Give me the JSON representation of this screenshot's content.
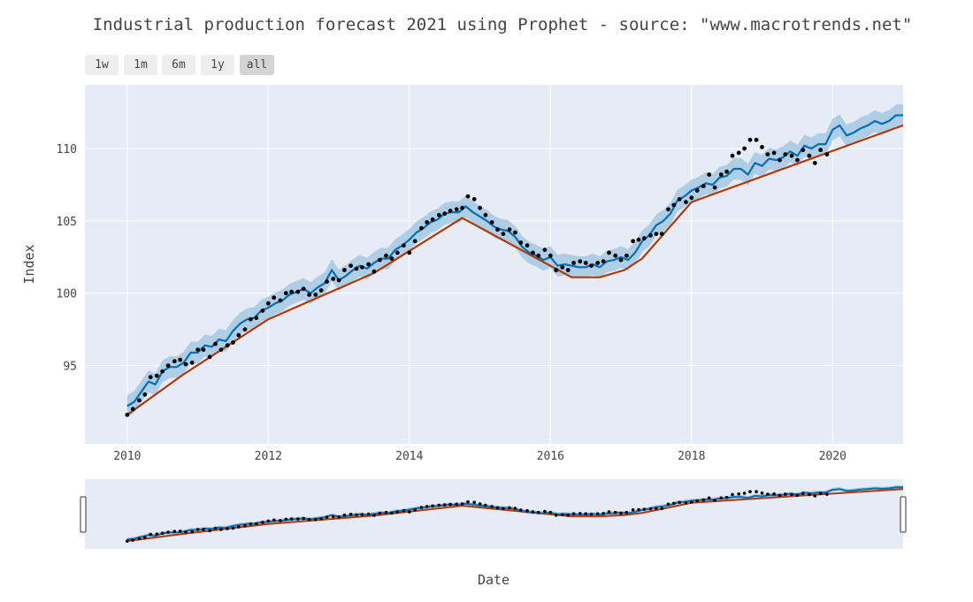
{
  "title": "Industrial production forecast 2021 using Prophet - source: \"www.macrotrends.net\"",
  "range_selector": {
    "buttons": [
      "1w",
      "1m",
      "6m",
      "1y",
      "all"
    ],
    "active": "all"
  },
  "colors": {
    "plot_bg": "#e5ecf6",
    "grid": "#ffffff",
    "forecast": "#0072b2",
    "band": "#a6c8e0",
    "trend": "#b03a08",
    "actual": "#000000"
  },
  "chart_data": {
    "type": "line",
    "title": "Industrial production forecast 2021 using Prophet - source: \"www.macrotrends.net\"",
    "xlabel": "Date",
    "ylabel": "Index",
    "xlim": [
      2009.4,
      2021.0
    ],
    "ylim": [
      89.6,
      114.4
    ],
    "x_ticks": [
      2010,
      2012,
      2014,
      2016,
      2018,
      2020
    ],
    "y_ticks": [
      95,
      100,
      105,
      110
    ],
    "grid": true,
    "rangeslider": true,
    "series": [
      {
        "kind": "trend",
        "x": [
          2010.0,
          2010.8,
          2012.0,
          2013.5,
          2014.75,
          2016.3,
          2016.7,
          2017.05,
          2017.3,
          2018.0,
          2021.0
        ],
        "y": [
          91.6,
          94.4,
          98.2,
          101.4,
          105.2,
          101.1,
          101.1,
          101.6,
          102.4,
          106.3,
          111.6
        ]
      },
      {
        "kind": "forecast",
        "x": [
          2010.0,
          2010.1,
          2010.2,
          2010.3,
          2010.4,
          2010.5,
          2010.6,
          2010.7,
          2010.8,
          2010.9,
          2011.0,
          2011.1,
          2011.2,
          2011.3,
          2011.4,
          2011.5,
          2011.6,
          2011.7,
          2011.8,
          2011.9,
          2012.0,
          2012.1,
          2012.2,
          2012.3,
          2012.4,
          2012.5,
          2012.6,
          2012.7,
          2012.8,
          2012.9,
          2013.0,
          2013.1,
          2013.2,
          2013.3,
          2013.4,
          2013.5,
          2013.6,
          2013.7,
          2013.8,
          2013.9,
          2014.0,
          2014.1,
          2014.2,
          2014.3,
          2014.4,
          2014.5,
          2014.6,
          2014.7,
          2014.8,
          2014.9,
          2015.0,
          2015.1,
          2015.2,
          2015.3,
          2015.4,
          2015.5,
          2015.6,
          2015.7,
          2015.8,
          2015.9,
          2016.0,
          2016.1,
          2016.2,
          2016.3,
          2016.4,
          2016.5,
          2016.6,
          2016.7,
          2016.8,
          2016.9,
          2017.0,
          2017.1,
          2017.2,
          2017.3,
          2017.4,
          2017.5,
          2017.6,
          2017.7,
          2017.8,
          2017.9,
          2018.0,
          2018.1,
          2018.2,
          2018.3,
          2018.4,
          2018.5,
          2018.6,
          2018.7,
          2018.8,
          2018.9,
          2019.0,
          2019.1,
          2019.2,
          2019.3,
          2019.4,
          2019.5,
          2019.6,
          2019.7,
          2019.8,
          2019.9,
          2020.0,
          2020.1,
          2020.2,
          2020.3,
          2020.4,
          2020.5,
          2020.6,
          2020.7,
          2020.8,
          2020.9,
          2021.0
        ],
        "y": [
          92.2,
          92.5,
          93.2,
          93.9,
          93.7,
          94.6,
          94.9,
          94.9,
          95.2,
          95.9,
          95.9,
          96.4,
          96.3,
          96.8,
          96.7,
          97.4,
          97.9,
          98.2,
          98.3,
          98.8,
          99.0,
          99.3,
          99.5,
          99.9,
          100.1,
          100.3,
          100.0,
          100.4,
          100.7,
          101.6,
          100.9,
          101.2,
          101.6,
          101.9,
          101.7,
          102.1,
          102.4,
          102.4,
          103.0,
          103.3,
          103.7,
          104.2,
          104.5,
          104.9,
          105.1,
          105.5,
          105.6,
          105.6,
          106.0,
          105.6,
          105.3,
          105.0,
          104.6,
          104.4,
          104.3,
          103.9,
          103.2,
          102.8,
          102.6,
          102.3,
          102.5,
          101.9,
          102.0,
          101.9,
          101.8,
          101.8,
          102.0,
          101.8,
          102.2,
          102.3,
          102.5,
          102.3,
          102.8,
          103.6,
          104.0,
          104.7,
          105.0,
          105.5,
          106.4,
          106.7,
          107.1,
          107.3,
          107.6,
          107.5,
          108.0,
          108.1,
          108.6,
          108.6,
          108.2,
          109.0,
          108.8,
          109.3,
          109.2,
          109.4,
          109.8,
          109.5,
          110.2,
          110.0,
          110.3,
          110.3,
          111.3,
          111.6,
          110.9,
          111.1,
          111.4,
          111.6,
          111.9,
          111.7,
          111.9,
          112.3,
          112.3
        ],
        "band_halfwidth": 0.75
      },
      {
        "kind": "actual",
        "x": [
          2010.0,
          2010.08,
          2010.17,
          2010.25,
          2010.33,
          2010.42,
          2010.5,
          2010.58,
          2010.67,
          2010.75,
          2010.83,
          2010.92,
          2011.0,
          2011.08,
          2011.17,
          2011.25,
          2011.33,
          2011.42,
          2011.5,
          2011.58,
          2011.67,
          2011.75,
          2011.83,
          2011.92,
          2012.0,
          2012.08,
          2012.17,
          2012.25,
          2012.33,
          2012.42,
          2012.5,
          2012.58,
          2012.67,
          2012.75,
          2012.83,
          2012.92,
          2013.0,
          2013.08,
          2013.17,
          2013.25,
          2013.33,
          2013.42,
          2013.5,
          2013.58,
          2013.67,
          2013.75,
          2013.83,
          2013.92,
          2014.0,
          2014.08,
          2014.17,
          2014.25,
          2014.33,
          2014.42,
          2014.5,
          2014.58,
          2014.67,
          2014.75,
          2014.83,
          2014.92,
          2015.0,
          2015.08,
          2015.17,
          2015.25,
          2015.33,
          2015.42,
          2015.5,
          2015.58,
          2015.67,
          2015.75,
          2015.83,
          2015.92,
          2016.0,
          2016.08,
          2016.17,
          2016.25,
          2016.33,
          2016.42,
          2016.5,
          2016.58,
          2016.67,
          2016.75,
          2016.83,
          2016.92,
          2017.0,
          2017.08,
          2017.17,
          2017.25,
          2017.33,
          2017.42,
          2017.5,
          2017.58,
          2017.67,
          2017.75,
          2017.83,
          2017.92,
          2018.0,
          2018.08,
          2018.17,
          2018.25,
          2018.33,
          2018.42,
          2018.5,
          2018.58,
          2018.67,
          2018.75,
          2018.83,
          2018.92,
          2019.0,
          2019.08,
          2019.17,
          2019.25,
          2019.33,
          2019.42,
          2019.5,
          2019.58,
          2019.67,
          2019.75,
          2019.83,
          2019.92
        ],
        "y": [
          91.6,
          92.0,
          92.6,
          93.0,
          94.2,
          94.3,
          94.6,
          95.0,
          95.3,
          95.4,
          95.1,
          95.2,
          96.1,
          96.1,
          95.6,
          96.5,
          96.1,
          96.4,
          96.6,
          97.1,
          97.5,
          98.2,
          98.3,
          98.8,
          99.3,
          99.7,
          99.5,
          100.0,
          100.1,
          100.1,
          100.3,
          99.9,
          99.9,
          100.2,
          100.8,
          101.0,
          100.9,
          101.6,
          101.9,
          101.7,
          101.8,
          102.0,
          101.5,
          102.3,
          102.6,
          102.4,
          102.8,
          103.3,
          102.8,
          103.6,
          104.5,
          104.9,
          105.1,
          105.4,
          105.5,
          105.7,
          105.8,
          105.9,
          106.7,
          106.5,
          105.9,
          105.4,
          104.9,
          104.4,
          104.1,
          104.4,
          104.2,
          103.5,
          103.3,
          102.8,
          102.6,
          103.0,
          102.6,
          101.6,
          101.8,
          101.6,
          102.1,
          102.2,
          102.1,
          101.9,
          102.1,
          102.2,
          102.8,
          102.6,
          102.3,
          102.6,
          103.6,
          103.7,
          103.8,
          104.0,
          104.1,
          104.1,
          105.8,
          106.1,
          106.5,
          106.3,
          106.6,
          107.1,
          107.4,
          108.2,
          107.3,
          108.2,
          108.4,
          109.5,
          109.7,
          110.0,
          110.6,
          110.6,
          110.1,
          109.6,
          109.7,
          109.2,
          109.6,
          109.5,
          109.2,
          109.9,
          109.5,
          109.0,
          109.9,
          109.6
        ]
      }
    ]
  }
}
